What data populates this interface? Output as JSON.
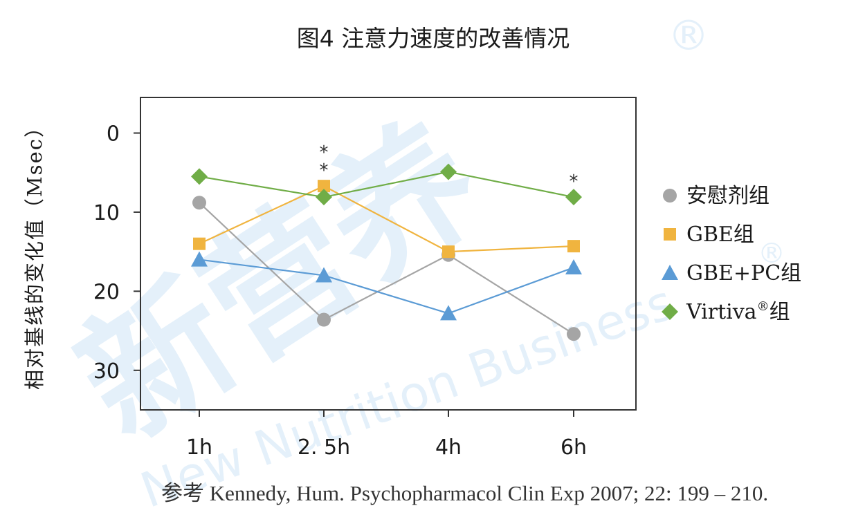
{
  "chart_data": {
    "type": "line",
    "title": "图4 注意力速度的改善情况",
    "ylabel": "相对基线的变化值（Msec）",
    "xlabel": "",
    "categories": [
      "1h",
      "2. 5h",
      "4h",
      "6h"
    ],
    "yticks": [
      "0",
      "10",
      "20",
      "30"
    ],
    "ylim": [
      35,
      -4.5
    ],
    "y_inverted": true,
    "grid": false,
    "legend_position": "right",
    "series": [
      {
        "name": "安慰剂组",
        "marker": "circle",
        "color": "#a5a5a5",
        "values": [
          8.8,
          23.6,
          15.4,
          25.4
        ]
      },
      {
        "name": "GBE组",
        "marker": "square",
        "color": "#f0b43f",
        "values": [
          14,
          6.7,
          15,
          14.3
        ]
      },
      {
        "name": "GBE+PC组",
        "marker": "triangle",
        "color": "#5b9bd5",
        "values": [
          16,
          18,
          22.8,
          17
        ]
      },
      {
        "name": "Virtiva",
        "name_sup": "®",
        "name_suffix": "组",
        "marker": "diamond",
        "color": "#70ad47",
        "values": [
          5.5,
          8.1,
          4.9,
          8.1
        ]
      }
    ],
    "annotations": [
      {
        "category": "2. 5h",
        "text": "*",
        "above_value": 6.7,
        "level": 1
      },
      {
        "category": "2. 5h",
        "text": "*",
        "above_value": 6.7,
        "level": 2
      },
      {
        "category": "6h",
        "text": "*",
        "above_value": 8.1,
        "level": 1
      }
    ]
  },
  "reference": "参考 Kennedy, Hum. Psychopharmacol Clin Exp 2007; 22: 199 – 210.",
  "watermark": {
    "brand": "新营养",
    "subtitle": "New Nutrition Business",
    "registered_mark": "®",
    "color": "#2f8fd6"
  }
}
